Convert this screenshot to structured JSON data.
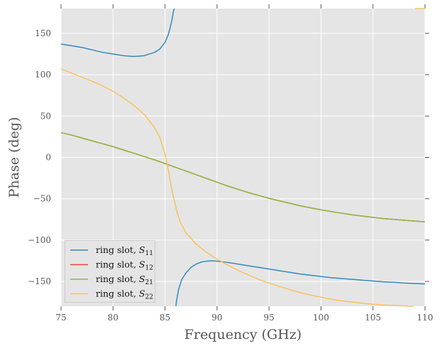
{
  "chart_data": {
    "type": "line",
    "title": "",
    "xlabel": "Frequency (GHz)",
    "ylabel": "Phase (deg)",
    "xlim": [
      75,
      110
    ],
    "ylim": [
      -180,
      180
    ],
    "xticks": [
      75,
      80,
      85,
      90,
      95,
      100,
      105,
      110
    ],
    "yticks": [
      150,
      100,
      50,
      0,
      -50,
      -100,
      -150
    ],
    "ytick_labels": [
      "150",
      "100",
      "50",
      "0",
      "−50",
      "−100",
      "−150"
    ],
    "grid": true,
    "legend_position": "lower-left",
    "series": [
      {
        "name": "ring slot, S11",
        "legend_prefix": "ring slot, ",
        "legend_symbol": "S",
        "legend_sub": "11",
        "color": "#348ABD",
        "x": [
          75,
          76,
          77,
          78,
          79,
          80,
          81,
          82,
          83,
          84,
          84.5,
          85,
          85.3,
          85.5,
          85.7,
          85.8,
          85.9,
          86.0,
          86.05,
          86.1,
          86.3,
          86.6,
          87,
          87.5,
          88,
          88.5,
          89,
          89.5,
          90,
          91,
          92,
          93,
          94,
          95,
          96,
          97,
          98,
          99,
          100,
          101,
          102,
          103,
          104,
          105,
          106,
          107,
          108,
          109,
          110
        ],
        "y": [
          137,
          135,
          133,
          130,
          127,
          125,
          123,
          122,
          123,
          127,
          131,
          139,
          148,
          157,
          168,
          176,
          180,
          null,
          -180,
          -174,
          -160,
          -148,
          -140,
          -133,
          -129,
          -126.5,
          -125.5,
          -125,
          -125.5,
          -127,
          -129,
          -131,
          -133,
          -135,
          -137,
          -139,
          -141,
          -142.5,
          -144,
          -145.5,
          -146.5,
          -147.5,
          -148.5,
          -149.5,
          -150.5,
          -151,
          -152,
          -152.5,
          -153
        ]
      },
      {
        "name": "ring slot, S12",
        "legend_prefix": "ring slot, ",
        "legend_symbol": "S",
        "legend_sub": "12",
        "color": "#E24A33",
        "x": [
          75,
          76,
          77,
          78,
          79,
          80,
          81,
          82,
          83,
          84,
          85,
          86,
          87,
          88,
          89,
          90,
          91,
          92,
          93,
          94,
          95,
          96,
          97,
          98,
          99,
          100,
          101,
          102,
          103,
          104,
          105,
          106,
          107,
          108,
          109,
          110
        ],
        "y": [
          30,
          27,
          23.5,
          20,
          16.5,
          13,
          9,
          5,
          1,
          -3,
          -7.5,
          -12,
          -16.5,
          -21,
          -25.5,
          -30,
          -34.5,
          -38.5,
          -42.5,
          -46,
          -49.5,
          -52.5,
          -55.5,
          -58.5,
          -61,
          -63.5,
          -65.5,
          -67.5,
          -69.5,
          -71,
          -72.5,
          -74,
          -75,
          -76,
          -77,
          -78
        ]
      },
      {
        "name": "ring slot, S21",
        "legend_prefix": "ring slot, ",
        "legend_symbol": "S",
        "legend_sub": "21",
        "color": "#8EBA42",
        "x": [
          75,
          76,
          77,
          78,
          79,
          80,
          81,
          82,
          83,
          84,
          85,
          86,
          87,
          88,
          89,
          90,
          91,
          92,
          93,
          94,
          95,
          96,
          97,
          98,
          99,
          100,
          101,
          102,
          103,
          104,
          105,
          106,
          107,
          108,
          109,
          110
        ],
        "y": [
          30,
          27,
          23.5,
          20,
          16.5,
          13,
          9,
          5,
          1,
          -3,
          -7.5,
          -12,
          -16.5,
          -21,
          -25.5,
          -30,
          -34.5,
          -38.5,
          -42.5,
          -46,
          -49.5,
          -52.5,
          -55.5,
          -58.5,
          -61,
          -63.5,
          -65.5,
          -67.5,
          -69.5,
          -71,
          -72.5,
          -74,
          -75,
          -76,
          -77,
          -78
        ]
      },
      {
        "name": "ring slot, S22",
        "legend_prefix": "ring slot, ",
        "legend_symbol": "S",
        "legend_sub": "22",
        "color": "#FBC15E",
        "x": [
          75,
          76,
          77,
          78,
          79,
          80,
          81,
          82,
          83,
          84,
          84.5,
          85,
          85.3,
          85.5,
          85.7,
          85.9,
          86.0,
          86.2,
          86.5,
          87,
          87.5,
          88,
          89,
          90,
          91,
          92,
          93,
          94,
          95,
          96,
          97,
          98,
          99,
          100,
          101,
          102,
          103,
          104,
          105,
          106,
          107,
          108,
          108.5,
          108.9,
          109.0,
          109.05,
          109.1,
          110
        ],
        "y": [
          107,
          102,
          97,
          92,
          86.5,
          80,
          72,
          63,
          52,
          36,
          24,
          4,
          -14,
          -28,
          -42,
          -52,
          -58,
          -68,
          -79,
          -91,
          -98,
          -105,
          -115,
          -123,
          -130,
          -136.5,
          -142,
          -147.5,
          -152,
          -156,
          -160,
          -163.5,
          -166.5,
          -169,
          -171.5,
          -173.5,
          -175,
          -176.5,
          -177.5,
          -178.5,
          -179,
          -179.5,
          -180,
          -180,
          null,
          180,
          180,
          180
        ]
      }
    ]
  }
}
